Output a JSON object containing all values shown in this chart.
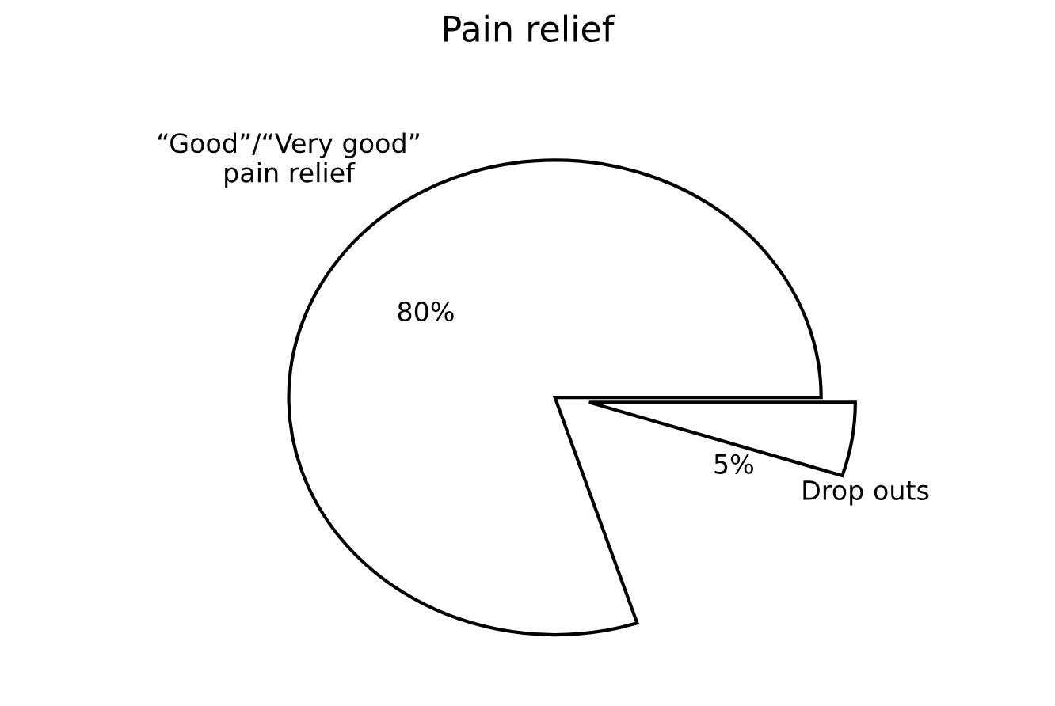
{
  "chart_data": {
    "type": "pie",
    "title": "Pain relief",
    "categories": [
      "“Good”/“Very good”\npain relief",
      "Drop outs"
    ],
    "values": [
      80,
      5
    ],
    "colors": [
      "#ffffff",
      "#ffffff"
    ],
    "value_labels": [
      "80%",
      "5%"
    ],
    "legend": false
  }
}
